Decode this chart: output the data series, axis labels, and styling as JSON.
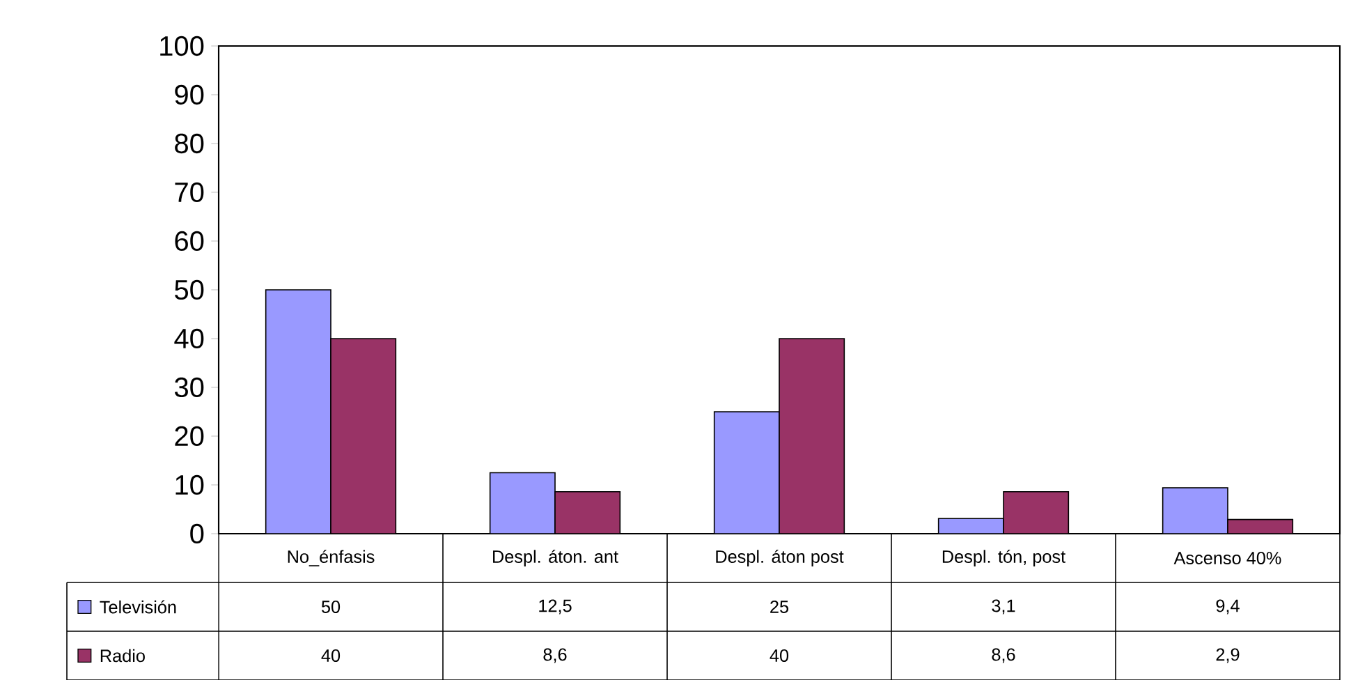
{
  "chart_data": {
    "type": "bar",
    "categories": [
      "No_énfasis",
      "Despl. áton. ant",
      "Despl. áton post",
      "Despl. tón, post",
      "Ascenso 40%"
    ],
    "series": [
      {
        "name": "Televisión",
        "color": "#9999ff",
        "values": [
          50,
          12.5,
          25,
          3.1,
          9.4
        ],
        "value_labels": [
          "50",
          "12,5",
          "25",
          "3,1",
          "9,4"
        ]
      },
      {
        "name": "Radio",
        "color": "#993366",
        "values": [
          40,
          8.6,
          40,
          8.6,
          2.9
        ],
        "value_labels": [
          "40",
          "8,6",
          "40",
          "8,6",
          "2,9"
        ]
      }
    ],
    "ylim": [
      0,
      100
    ],
    "yticks": [
      0,
      10,
      20,
      30,
      40,
      50,
      60,
      70,
      80,
      90,
      100
    ],
    "legend": "bottom",
    "tick_labels": "y"
  }
}
